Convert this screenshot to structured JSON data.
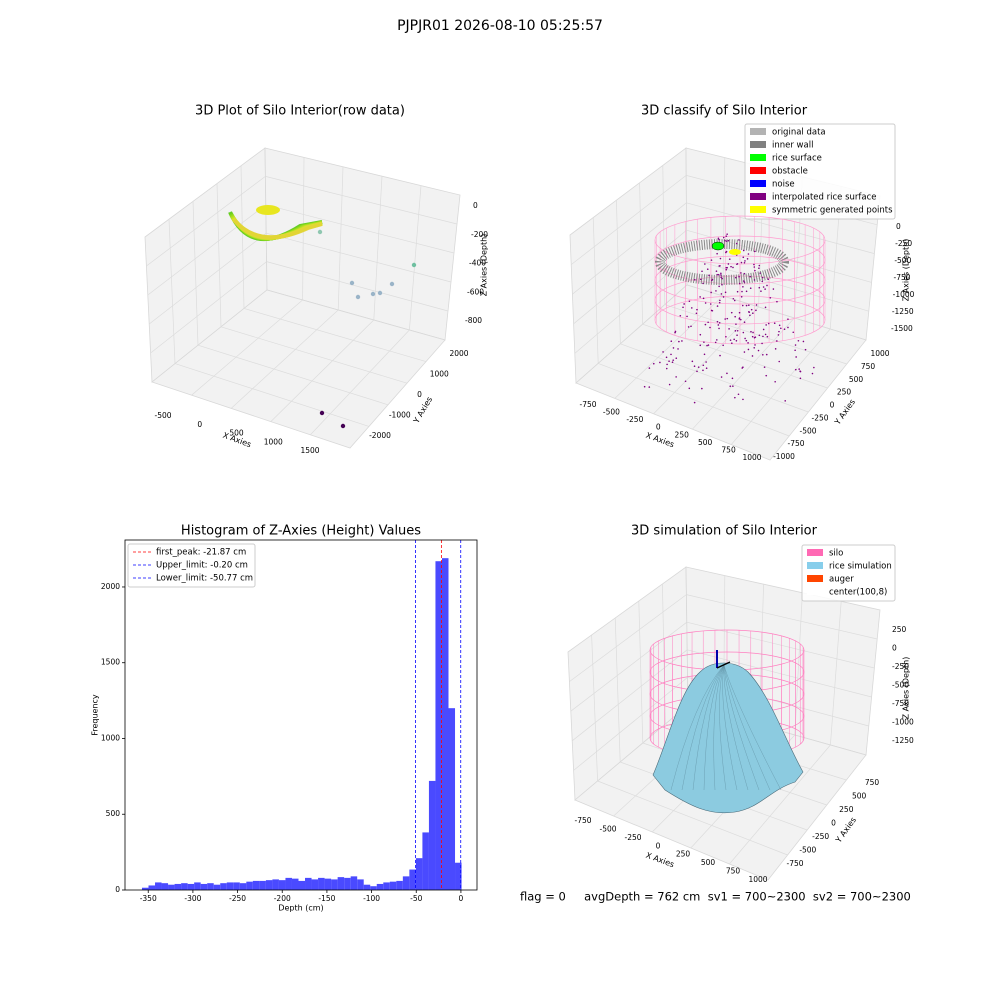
{
  "suptitle": "PJPJR01 2026-08-10 05:25:57",
  "footer": "flag = 0     avgDepth = 762 cm  sv1 = 700~2300  sv2 = 700~2300",
  "chart_data": [
    {
      "type": "scatter3d",
      "title": "3D Plot of Silo Interior(row data)",
      "xlabel": "X Axies",
      "ylabel": "Y Axies",
      "zlabel": "Z Axies (Depth)",
      "xticks": [
        -500,
        0,
        500,
        1000,
        1500
      ],
      "yticks": [
        2000,
        1000,
        0,
        -1000,
        -2000
      ],
      "zticks": [
        0,
        -200,
        -400,
        -600,
        -800
      ]
    },
    {
      "type": "scatter3d",
      "title": "3D classify of Silo Interior",
      "xlabel": "X Axies",
      "ylabel": "Y Axies",
      "zlabel": "Z Axies (Depth)",
      "legend": [
        {
          "name": "original data",
          "color": "#b3b3b3"
        },
        {
          "name": "inner wall",
          "color": "#808080"
        },
        {
          "name": "rice surface",
          "color": "#00ff00"
        },
        {
          "name": "obstacle",
          "color": "#ff0000"
        },
        {
          "name": "noise",
          "color": "#0000ff"
        },
        {
          "name": "interpolated rice surface",
          "color": "#800080"
        },
        {
          "name": "symmetric generated points",
          "color": "#ffff00"
        }
      ],
      "xticks": [
        -750,
        -500,
        -250,
        0,
        250,
        500,
        750,
        1000
      ],
      "yticks": [
        1000,
        750,
        500,
        250,
        0,
        -250,
        -500,
        -750,
        -1000
      ],
      "zticks": [
        0,
        -250,
        -500,
        -750,
        -1000,
        -1250,
        -1500
      ]
    },
    {
      "type": "histogram",
      "title": "Histogram of Z-Axies (Height) Values",
      "xlabel": "Depth (cm)",
      "ylabel": "Frequency",
      "color": "#4040ff",
      "bins": [
        -357.0,
        -349.7,
        -342.4,
        -335.1,
        -327.8,
        -320.5,
        -313.2,
        -305.9,
        -298.6,
        -291.3,
        -284.0,
        -276.7,
        -269.4,
        -262.1,
        -254.8,
        -247.5,
        -240.2,
        -232.9,
        -225.6,
        -218.3,
        -211.0,
        -203.7,
        -196.4,
        -189.1,
        -181.8,
        -174.5,
        -167.2,
        -159.9,
        -152.6,
        -145.3,
        -138.0,
        -130.7,
        -123.4,
        -116.1,
        -108.8,
        -101.5,
        -94.2,
        -86.9,
        -79.6,
        -72.3,
        -65.0,
        -57.7,
        -50.4,
        -43.1,
        -35.8,
        -28.5,
        -21.2,
        -13.9,
        -6.6,
        0.7
      ],
      "counts": [
        15,
        30,
        50,
        45,
        35,
        40,
        45,
        40,
        50,
        40,
        45,
        35,
        45,
        50,
        50,
        45,
        55,
        60,
        60,
        65,
        70,
        65,
        80,
        75,
        60,
        80,
        70,
        80,
        75,
        70,
        85,
        80,
        90,
        70,
        35,
        25,
        40,
        50,
        55,
        60,
        90,
        135,
        210,
        380,
        720,
        2170,
        2190,
        1200,
        180
      ],
      "xlim": [
        -376,
        18
      ],
      "ylim": [
        0,
        2310
      ],
      "xticks": [
        -350,
        -300,
        -250,
        -200,
        -150,
        -100,
        -50,
        0
      ],
      "yticks": [
        0,
        500,
        1000,
        1500,
        2000
      ],
      "lines": [
        {
          "name": "first_peak: -21.87 cm",
          "value": -21.87,
          "color": "#ff0000"
        },
        {
          "name": "Upper_limit: -0.20 cm",
          "value": -0.2,
          "color": "#0000ff"
        },
        {
          "name": "Lower_limit: -50.77 cm",
          "value": -50.77,
          "color": "#0000ff"
        }
      ]
    },
    {
      "type": "surface3d",
      "title": "3D simulation of Silo Interior",
      "xlabel": "X Axies",
      "ylabel": "Y Axies",
      "zlabel": "Z Axies (Depth)",
      "legend": [
        {
          "name": "silo",
          "color": "#ff69b4"
        },
        {
          "name": "rice simulation",
          "color": "#87ceeb"
        },
        {
          "name": "auger",
          "color": "#ff4500"
        },
        {
          "name": "center(100,8)",
          "color": "#ffffff"
        }
      ],
      "xticks": [
        -750,
        -500,
        -250,
        0,
        250,
        500,
        750,
        1000
      ],
      "yticks": [
        750,
        500,
        250,
        0,
        -250,
        -500,
        -750
      ],
      "zticks": [
        250,
        0,
        -250,
        -500,
        -750,
        -1000,
        -1250
      ]
    }
  ]
}
